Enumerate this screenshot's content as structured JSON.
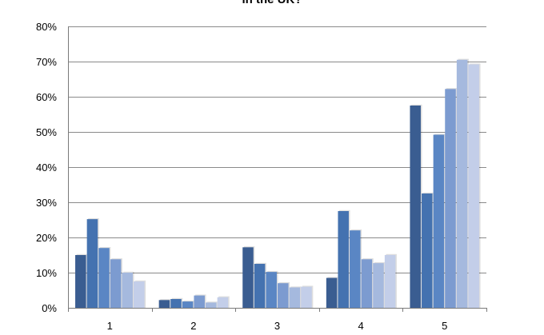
{
  "chart_data": {
    "type": "bar",
    "title": "in the UK?",
    "xlabel": "",
    "ylabel": "",
    "categories": [
      "1",
      "2",
      "3",
      "4",
      "5"
    ],
    "ylim": [
      0,
      80
    ],
    "y_ticks": [
      "0%",
      "10%",
      "20%",
      "30%",
      "40%",
      "50%",
      "60%",
      "70%",
      "80%"
    ],
    "grid": true,
    "legend": "none",
    "unit": "%",
    "series": [
      {
        "values": [
          15,
          2.2,
          17.2,
          8.5,
          57.5
        ],
        "color": "#3a5d91"
      },
      {
        "values": [
          25.2,
          2.5,
          12.5,
          27.5,
          32.5
        ],
        "color": "#4472b0"
      },
      {
        "values": [
          17,
          1.8,
          10.2,
          22,
          49.2
        ],
        "color": "#5a86c4"
      },
      {
        "values": [
          13.8,
          3.5,
          7,
          13.8,
          62.2
        ],
        "color": "#7c9bd0"
      },
      {
        "values": [
          10,
          1.5,
          5.8,
          12.7,
          70.5
        ],
        "color": "#a5b9de"
      },
      {
        "values": [
          7.5,
          3,
          6,
          15,
          69.2
        ],
        "color": "#c3cee9"
      }
    ]
  }
}
